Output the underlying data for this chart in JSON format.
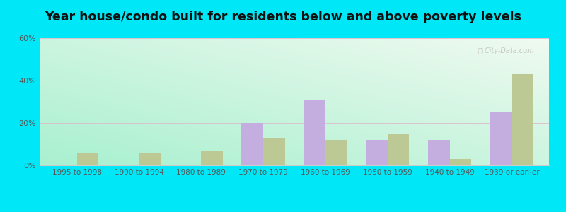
{
  "title": "Year house/condo built for residents below and above poverty levels",
  "categories": [
    "1995 to 1998",
    "1990 to 1994",
    "1980 to 1989",
    "1970 to 1979",
    "1960 to 1969",
    "1950 to 1959",
    "1940 to 1949",
    "1939 or earlier"
  ],
  "below_poverty": [
    0,
    0,
    0,
    20,
    31,
    12,
    12,
    25
  ],
  "above_poverty": [
    6,
    6,
    7,
    13,
    12,
    15,
    3,
    43
  ],
  "below_color": "#c4aee0",
  "above_color": "#bcc994",
  "ylim": [
    0,
    60
  ],
  "yticks": [
    0,
    20,
    40,
    60
  ],
  "ytick_labels": [
    "0%",
    "20%",
    "40%",
    "60%"
  ],
  "bg_topleft": "#a8f0d0",
  "bg_bottomright": "#f0faf0",
  "outer_bg": "#00e8f8",
  "bar_width": 0.35,
  "title_fontsize": 12.5
}
